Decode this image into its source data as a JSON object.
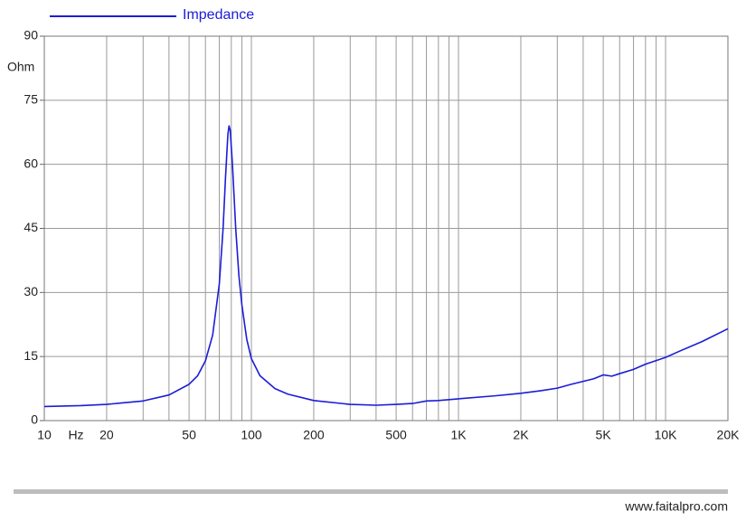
{
  "chart_data": {
    "type": "line",
    "xscale": "log",
    "x_unit": "Hz",
    "y_unit": "Ohm",
    "x": [
      10,
      15,
      20,
      30,
      40,
      50,
      55,
      60,
      65,
      70,
      73,
      75,
      77,
      78,
      79,
      81,
      84,
      87,
      90,
      95,
      100,
      110,
      130,
      150,
      200,
      300,
      400,
      500,
      600,
      700,
      800,
      1000,
      1500,
      2000,
      2500,
      3000,
      3500,
      4500,
      5000,
      5500,
      6000,
      7000,
      8000,
      10000,
      12000,
      15000,
      20000
    ],
    "series": [
      {
        "name": "Impedance",
        "color": "#1c1cd8",
        "values": [
          3.3,
          3.5,
          3.8,
          4.6,
          6.0,
          8.5,
          10.5,
          14,
          20,
          32,
          45,
          57,
          67,
          69,
          68,
          60,
          45,
          34,
          27,
          19,
          14.5,
          10.5,
          7.5,
          6.2,
          4.7,
          3.8,
          3.6,
          3.8,
          4.0,
          4.6,
          4.7,
          5.1,
          5.8,
          6.4,
          7.0,
          7.6,
          8.5,
          9.8,
          10.7,
          10.4,
          11,
          12,
          13.2,
          14.8,
          16.5,
          18.5,
          21.5
        ]
      }
    ],
    "xlim": [
      10,
      20000
    ],
    "ylim": [
      0,
      90
    ],
    "xticks": [
      10,
      20,
      50,
      100,
      200,
      500,
      {
        "value": 1000,
        "label": "1K"
      },
      {
        "value": 2000,
        "label": "2K"
      },
      {
        "value": 5000,
        "label": "5K"
      },
      {
        "value": 10000,
        "label": "10K"
      },
      {
        "value": 20000,
        "label": "20K"
      }
    ],
    "xgrid_minor": [
      30,
      40,
      60,
      70,
      80,
      90,
      300,
      400,
      600,
      700,
      800,
      900,
      3000,
      4000,
      6000,
      7000,
      8000,
      9000
    ],
    "yticks": [
      0,
      15,
      30,
      45,
      60,
      75,
      90
    ],
    "grid": true
  },
  "footer": "www.faitalpro.com"
}
